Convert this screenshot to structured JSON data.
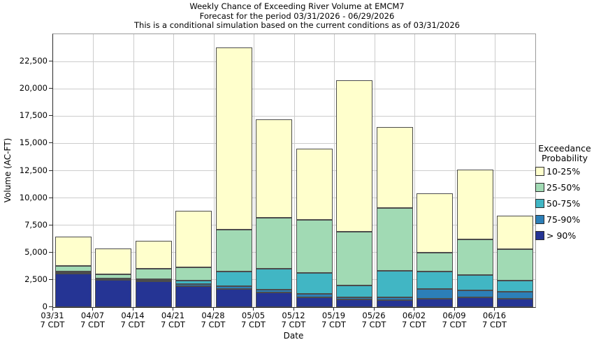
{
  "chart_data": {
    "type": "bar",
    "stacked": true,
    "title": "Weekly Chance of Exceeding River Volume at EMCM7",
    "subtitle1": "Forecast for the period 03/31/2026 - 06/29/2026",
    "subtitle2": "This is a conditional simulation based on the current conditions as of 03/31/2026",
    "xlabel": "Date",
    "ylabel": "Volume (AC-FT)",
    "ylim": [
      0,
      25000
    ],
    "grid": true,
    "legend_position": "right",
    "x_sublabel": "7 CDT",
    "categories": [
      "03/31",
      "04/07",
      "04/14",
      "04/21",
      "04/28",
      "05/05",
      "05/12",
      "05/19",
      "05/26",
      "06/02",
      "06/09",
      "06/16"
    ],
    "y_ticks": [
      {
        "value": 0,
        "label": "0"
      },
      {
        "value": 2500,
        "label": "2,500"
      },
      {
        "value": 5000,
        "label": "5,000"
      },
      {
        "value": 7500,
        "label": "7,500"
      },
      {
        "value": 10000,
        "label": "10,000"
      },
      {
        "value": 12500,
        "label": "12,500"
      },
      {
        "value": 15000,
        "label": "15,000"
      },
      {
        "value": 17500,
        "label": "17,500"
      },
      {
        "value": 20000,
        "label": "20,000"
      },
      {
        "value": 22500,
        "label": "22,500"
      }
    ],
    "series": [
      {
        "name": "> 90%",
        "color": "#253494",
        "values": [
          3100,
          2525,
          2350,
          1950,
          1650,
          1350,
          900,
          700,
          650,
          750,
          900,
          750
        ]
      },
      {
        "name": "75-90%",
        "color": "#2c7fb8",
        "values": [
          50,
          50,
          75,
          175,
          250,
          250,
          300,
          200,
          250,
          900,
          650,
          650
        ]
      },
      {
        "name": "50-75%",
        "color": "#41b6c4",
        "values": [
          100,
          75,
          125,
          325,
          1350,
          1900,
          1950,
          1100,
          2400,
          1600,
          1400,
          1050
        ]
      },
      {
        "name": "25-50%",
        "color": "#a1dab4",
        "values": [
          500,
          350,
          950,
          1200,
          3850,
          4700,
          4850,
          4900,
          5750,
          1750,
          3250,
          2850
        ]
      },
      {
        "name": "10-25%",
        "color": "#ffffcc",
        "values": [
          2700,
          2400,
          2600,
          5150,
          16700,
          9000,
          6500,
          13900,
          7450,
          5400,
          6400,
          3050
        ]
      }
    ],
    "totals": [
      6450,
      5400,
      6100,
      8800,
      23800,
      17200,
      14500,
      20800,
      16500,
      10400,
      12600,
      8350
    ],
    "legend": {
      "title1": "Exceedance",
      "title2": "Probability",
      "items": [
        {
          "label": "10-25%",
          "color": "#ffffcc"
        },
        {
          "label": "25-50%",
          "color": "#a1dab4"
        },
        {
          "label": "50-75%",
          "color": "#41b6c4"
        },
        {
          "label": "75-90%",
          "color": "#2c7fb8"
        },
        {
          "label": "> 90%",
          "color": "#253494"
        }
      ]
    },
    "colors": {
      "grid": "#cccccc",
      "axis": "#2a2a2a",
      "plot_border": "#9a9a9a",
      "segment_outline": "#4c4c4c",
      "background": "#ffffff"
    }
  }
}
